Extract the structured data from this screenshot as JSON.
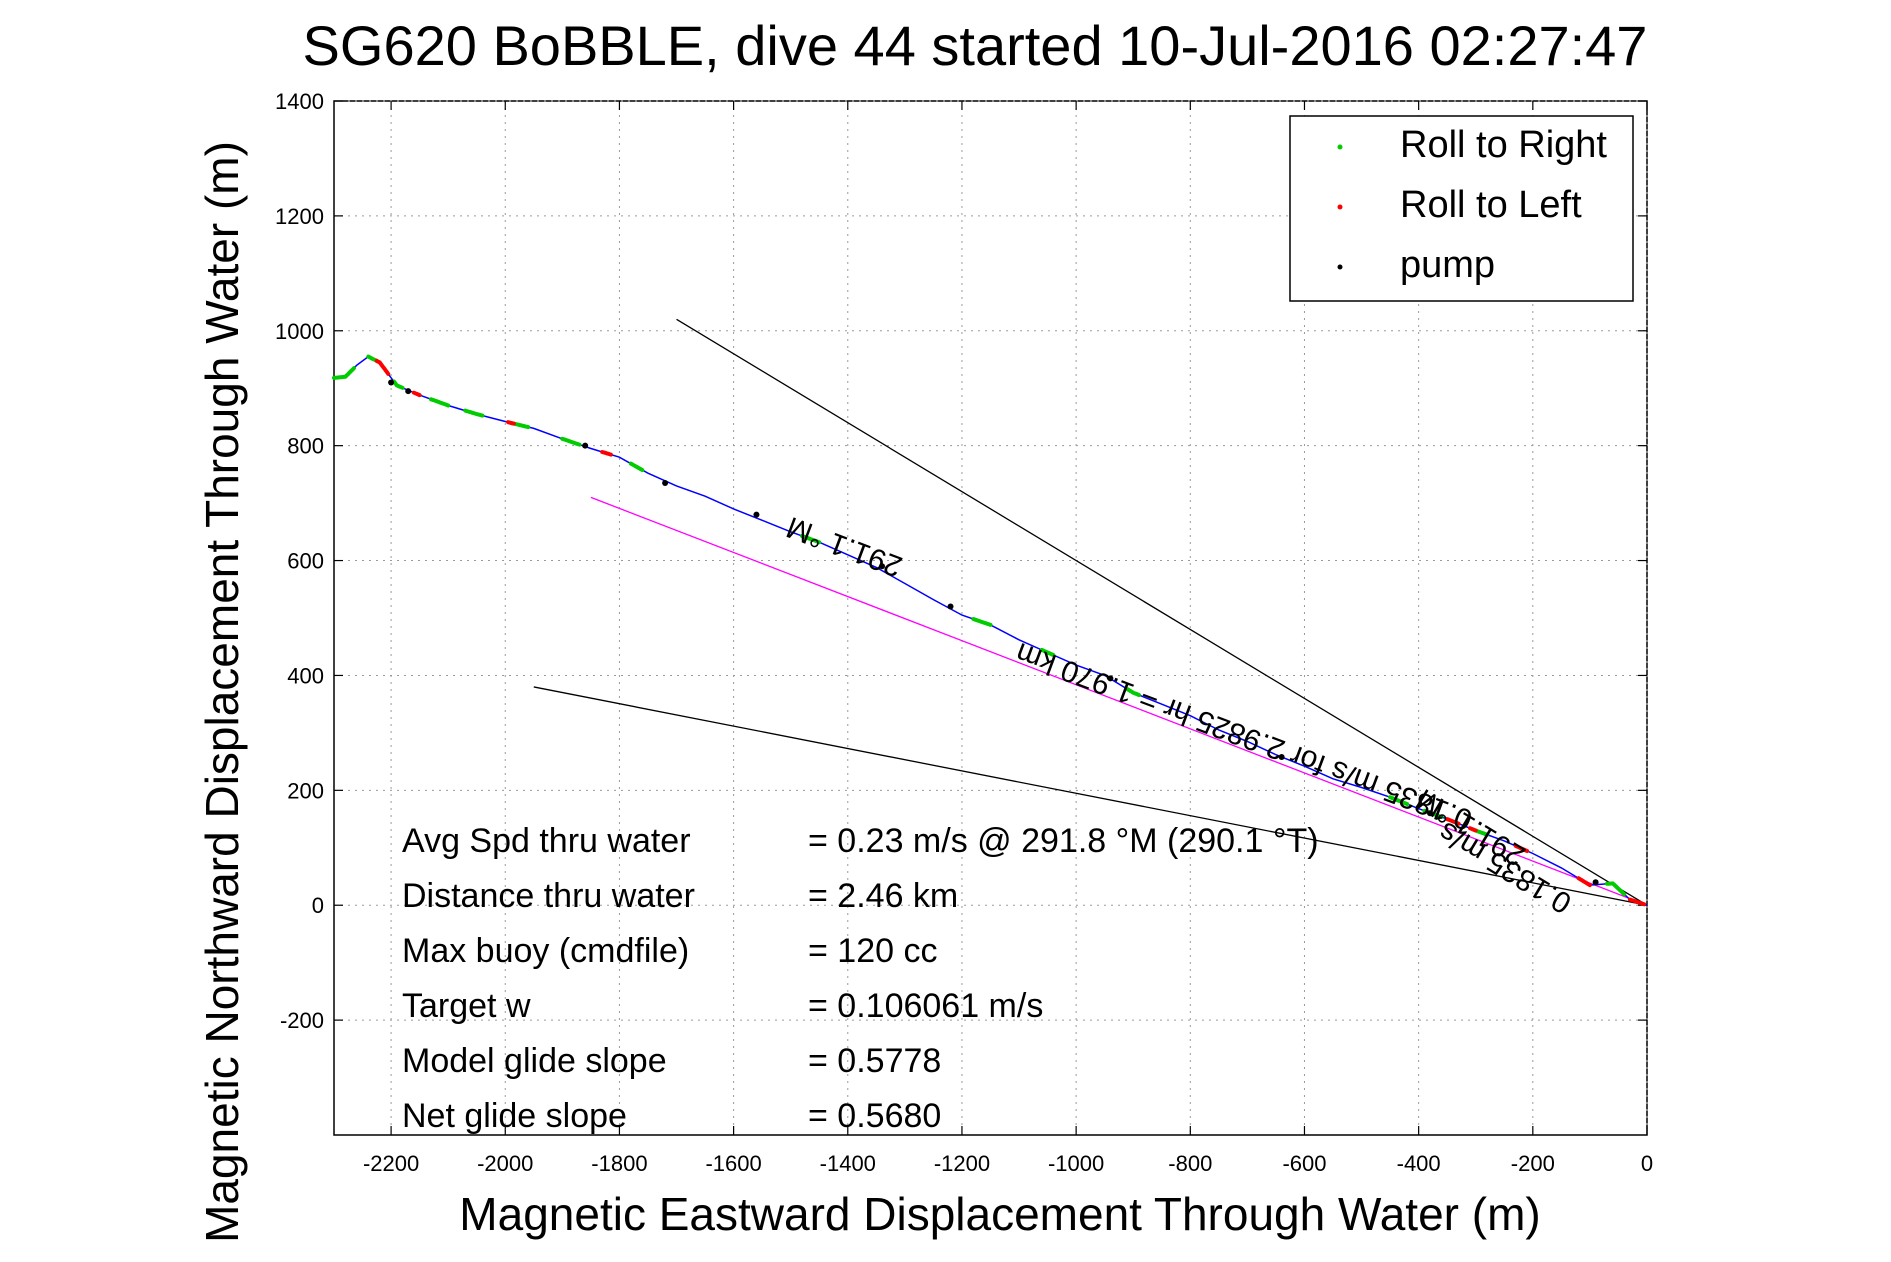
{
  "chart_data": {
    "type": "line",
    "title": "SG620 BoBBLE, dive 44 started 10-Jul-2016 02:27:47",
    "xlabel": "Magnetic Eastward Displacement Through Water (m)",
    "ylabel": "Magnetic Northward Displacement Through Water (m)",
    "xlim": [
      -2300,
      0
    ],
    "ylim": [
      -400,
      1400
    ],
    "xticks": [
      -2200,
      -2000,
      -1800,
      -1600,
      -1400,
      -1200,
      -1000,
      -800,
      -600,
      -400,
      -200,
      0
    ],
    "yticks": [
      -200,
      0,
      200,
      400,
      600,
      800,
      1000,
      1200,
      1400
    ],
    "grid": true,
    "legend_position": "top-right",
    "colors": {
      "track": "#0000ff",
      "roll_right": "#00cc00",
      "roll_left": "#ff0000",
      "pump": "#000000",
      "heading_line": "#000000",
      "model_line": "#ff00ff"
    },
    "legend": [
      {
        "label": "Roll to Right",
        "color": "#00cc00"
      },
      {
        "label": "Roll to Left",
        "color": "#ff0000"
      },
      {
        "label": "pump",
        "color": "#000000"
      }
    ],
    "series": [
      {
        "name": "track",
        "color": "#0000ff",
        "points": [
          [
            -2300,
            918
          ],
          [
            -2280,
            920
          ],
          [
            -2260,
            940
          ],
          [
            -2240,
            955
          ],
          [
            -2220,
            945
          ],
          [
            -2205,
            925
          ],
          [
            -2190,
            905
          ],
          [
            -2150,
            888
          ],
          [
            -2100,
            870
          ],
          [
            -2050,
            855
          ],
          [
            -2000,
            842
          ],
          [
            -1950,
            830
          ],
          [
            -1900,
            812
          ],
          [
            -1850,
            795
          ],
          [
            -1800,
            780
          ],
          [
            -1750,
            752
          ],
          [
            -1700,
            730
          ],
          [
            -1650,
            712
          ],
          [
            -1600,
            690
          ],
          [
            -1550,
            670
          ],
          [
            -1500,
            650
          ],
          [
            -1450,
            632
          ],
          [
            -1400,
            610
          ],
          [
            -1350,
            588
          ],
          [
            -1300,
            560
          ],
          [
            -1250,
            532
          ],
          [
            -1200,
            505
          ],
          [
            -1150,
            488
          ],
          [
            -1100,
            462
          ],
          [
            -1050,
            440
          ],
          [
            -1000,
            418
          ],
          [
            -950,
            400
          ],
          [
            -900,
            370
          ],
          [
            -850,
            350
          ],
          [
            -800,
            330
          ],
          [
            -750,
            305
          ],
          [
            -700,
            285
          ],
          [
            -650,
            262
          ],
          [
            -600,
            242
          ],
          [
            -550,
            220
          ],
          [
            -500,
            205
          ],
          [
            -450,
            188
          ],
          [
            -400,
            168
          ],
          [
            -350,
            150
          ],
          [
            -300,
            130
          ],
          [
            -250,
            112
          ],
          [
            -200,
            90
          ],
          [
            -150,
            65
          ],
          [
            -100,
            35
          ],
          [
            -60,
            38
          ],
          [
            -30,
            10
          ],
          [
            0,
            0
          ]
        ]
      }
    ],
    "roll_right_segments": [
      [
        -2300,
        -2265
      ],
      [
        -2240,
        -2225
      ],
      [
        -2195,
        -2180
      ],
      [
        -2130,
        -2100
      ],
      [
        -2070,
        -2040
      ],
      [
        -1990,
        -1960
      ],
      [
        -1900,
        -1870
      ],
      [
        -1780,
        -1760
      ],
      [
        -1480,
        -1450
      ],
      [
        -1180,
        -1150
      ],
      [
        -1060,
        -1040
      ],
      [
        -910,
        -890
      ],
      [
        -450,
        -420
      ],
      [
        -390,
        -360
      ],
      [
        -300,
        -280
      ],
      [
        -70,
        -40
      ]
    ],
    "roll_left_segments": [
      [
        -2225,
        -2205
      ],
      [
        -2160,
        -2150
      ],
      [
        -1995,
        -1985
      ],
      [
        -1830,
        -1815
      ],
      [
        -350,
        -330
      ],
      [
        -310,
        -300
      ],
      [
        -230,
        -210
      ],
      [
        -120,
        -100
      ],
      [
        -30,
        -5
      ]
    ],
    "pump_points": [
      [
        -2200,
        910
      ],
      [
        -2170,
        895
      ],
      [
        -1860,
        800
      ],
      [
        -1720,
        735
      ],
      [
        -1560,
        680
      ],
      [
        -1340,
        590
      ],
      [
        -1220,
        520
      ],
      [
        -940,
        395
      ],
      [
        -640,
        258
      ],
      [
        -380,
        160
      ],
      [
        -90,
        40
      ]
    ],
    "lines": [
      {
        "name": "upper-heading-line",
        "color": "#000000",
        "from": [
          -1700,
          1020
        ],
        "to": [
          0,
          0
        ]
      },
      {
        "name": "lower-heading-line",
        "color": "#000000",
        "from": [
          -1950,
          380
        ],
        "to": [
          0,
          0
        ]
      },
      {
        "name": "model-line",
        "color": "#ff00ff",
        "from": [
          -1850,
          710
        ],
        "to": [
          0,
          0
        ]
      }
    ],
    "rotated_annotations": [
      {
        "text": "291.1 °M",
        "at": [
          -1400,
          640
        ],
        "angle": 200.5
      },
      {
        "text": "0.1835 m/s for 2.9825 hr = 1.970 km",
        "at": [
          -700,
          310
        ],
        "angle": 200.5
      },
      {
        "text": "291.1 °M",
        "at": [
          -300,
          150
        ],
        "angle": 211
      },
      {
        "text": "0.1835 m/s",
        "at": [
          -240,
          80
        ],
        "angle": 211
      }
    ],
    "stats": [
      {
        "label": "Avg Spd thru water",
        "value": "=  0.23 m/s @ 291.8 °M (290.1  °T)"
      },
      {
        "label": "Distance thru water",
        "value": "=  2.46 km"
      },
      {
        "label": "Max buoy (cmdfile)",
        "value": "= 120 cc"
      },
      {
        "label": "Target w",
        "value": "= 0.106061 m/s"
      },
      {
        "label": "Model glide slope",
        "value": "= 0.5778"
      },
      {
        "label": "Net glide slope",
        "value": "= 0.5680"
      }
    ]
  }
}
